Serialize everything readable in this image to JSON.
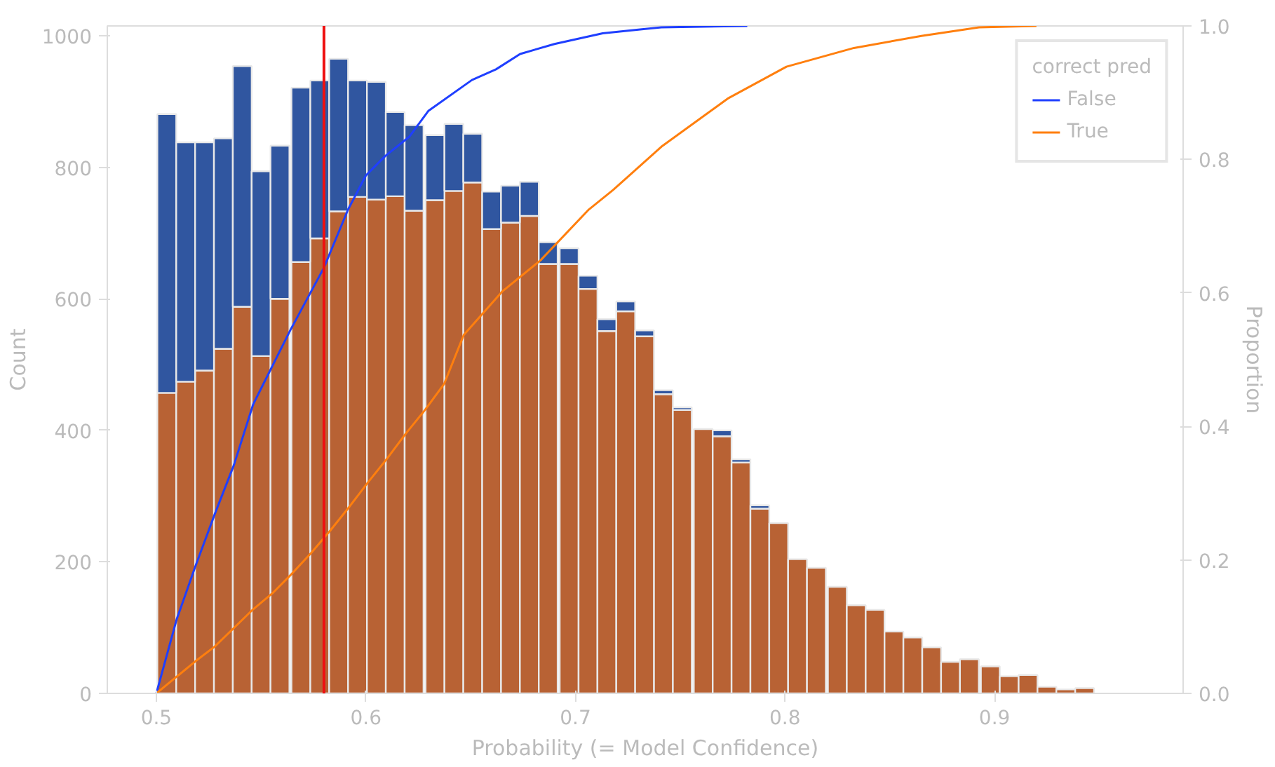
{
  "chart_data": {
    "type": "bar",
    "stacked": true,
    "x": [
      0.505,
      0.514,
      0.523,
      0.532,
      0.541,
      0.55,
      0.559,
      0.569,
      0.578,
      0.587,
      0.596,
      0.605,
      0.614,
      0.623,
      0.633,
      0.642,
      0.651,
      0.66,
      0.669,
      0.678,
      0.687,
      0.697,
      0.706,
      0.715,
      0.724,
      0.733,
      0.742,
      0.751,
      0.761,
      0.77,
      0.779,
      0.788,
      0.797,
      0.806,
      0.815,
      0.825,
      0.834,
      0.843,
      0.852,
      0.861,
      0.87,
      0.879,
      0.888,
      0.898,
      0.907,
      0.916,
      0.925,
      0.934,
      0.943
    ],
    "series": [
      {
        "color": "#b86234",
        "values": [
          457,
          474,
          491,
          524,
          588,
          513,
          600,
          656,
          692,
          733,
          755,
          751,
          756,
          734,
          750,
          764,
          777,
          706,
          716,
          726,
          653,
          653,
          615,
          551,
          581,
          543,
          455,
          431,
          402,
          391,
          351,
          281,
          259,
          204,
          191,
          162,
          134,
          127,
          94,
          85,
          70,
          48,
          52,
          41,
          26,
          28,
          10,
          6,
          8
        ]
      },
      {
        "color": "#3056a0",
        "values": [
          424,
          364,
          347,
          320,
          366,
          281,
          233,
          265,
          240,
          232,
          177,
          179,
          128,
          130,
          99,
          102,
          74,
          57,
          56,
          52,
          33,
          24,
          20,
          18,
          15,
          9,
          6,
          4,
          null,
          9,
          5,
          5,
          null,
          null,
          null,
          null,
          null,
          null,
          null,
          null,
          null,
          null,
          null,
          null,
          null,
          null,
          null,
          null,
          null
        ]
      },
      {
        "type": "line",
        "name": "False",
        "color": "#1f3fff",
        "axis": "y2",
        "x": [
          0.5,
          0.5097,
          0.5186,
          0.5278,
          0.537,
          0.5462,
          0.5639,
          0.58,
          0.5915,
          0.6,
          0.6092,
          0.6207,
          0.6299,
          0.6506,
          0.6621,
          0.6736,
          0.69,
          0.713,
          0.7317,
          0.741,
          0.782
        ],
        "values": [
          0,
          0.111,
          0.19,
          0.268,
          0.342,
          0.433,
          0.544,
          0.638,
          0.725,
          0.776,
          0.805,
          0.834,
          0.873,
          0.919,
          0.935,
          0.958,
          0.973,
          0.989,
          0.995,
          0.998,
          1.0
        ]
      },
      {
        "type": "line",
        "name": "True",
        "color": "#ff7f0e",
        "axis": "y2",
        "x": [
          0.5,
          0.5097,
          0.5186,
          0.5278,
          0.537,
          0.5462,
          0.5554,
          0.5646,
          0.5738,
          0.583,
          0.5922,
          0.6007,
          0.6099,
          0.619,
          0.6283,
          0.6374,
          0.6467,
          0.665,
          0.6834,
          0.7064,
          0.7179,
          0.741,
          0.7731,
          0.8007,
          0.8329,
          0.8651,
          0.8926,
          0.92
        ],
        "values": [
          0,
          0.025,
          0.048,
          0.07,
          0.098,
          0.126,
          0.15,
          0.179,
          0.21,
          0.244,
          0.28,
          0.315,
          0.351,
          0.389,
          0.425,
          0.464,
          0.537,
          0.602,
          0.649,
          0.725,
          0.754,
          0.819,
          0.892,
          0.939,
          0.967,
          0.985,
          0.998,
          1.0
        ]
      }
    ],
    "xlabel": "Probability (= Model Confidence)",
    "ylabel": "Count",
    "y2label": "Proportion",
    "legend_title": "correct pred",
    "legend": "top right",
    "grid": false,
    "xlim": [
      0.4766,
      0.99
    ],
    "xticks": [
      0.5,
      0.6,
      0.7,
      0.8,
      0.9
    ],
    "ylim": [
      0,
      1015
    ],
    "yticks": [
      0,
      200,
      400,
      600,
      800,
      1000
    ],
    "y2lim": [
      0,
      1.0
    ],
    "y2ticks": [
      {
        "value": 0,
        "label": "0.0"
      },
      {
        "value": 0.2,
        "label": "0.2"
      },
      {
        "value": 0.4,
        "label": "0.4"
      },
      {
        "value": 0.6,
        "label": "0.6"
      },
      {
        "value": 0.8,
        "label": "0.8"
      },
      {
        "value": 1.0,
        "label": "1.0"
      }
    ],
    "ref_lines": [
      {
        "axis": "x",
        "value": 0.58,
        "color": "#ee1111"
      }
    ]
  }
}
